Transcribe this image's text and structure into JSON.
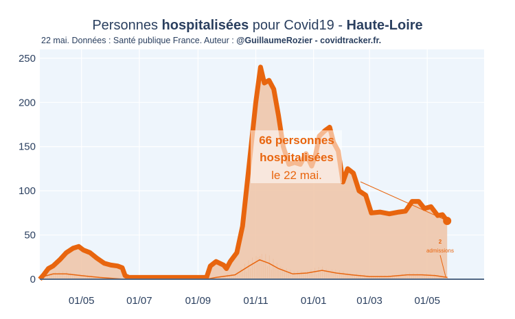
{
  "header": {
    "title_pre": "Personnes ",
    "title_bold": "hospitalisées",
    "title_mid": " pour Covid19 - ",
    "title_region": "Haute-Loire",
    "subtitle_pre": "22 mai. Données : Santé publique France. Auteur : ",
    "subtitle_author": "@GuillaumeRozier - covidtracker.fr."
  },
  "annotations": {
    "main_line1": "66 personnes",
    "main_line2": "hospitalisées",
    "main_line3": "le 22 mai.",
    "admissions_value": "2",
    "admissions_label": "admissions"
  },
  "colors": {
    "plot_bg": "#eef5fc",
    "hosp_line": "#e8650e",
    "hosp_fill": "#efc3a6",
    "admissions": "#e8650e",
    "axis_text": "#2a3f5f"
  },
  "chart_data": {
    "type": "area",
    "title": "Personnes hospitalisées pour Covid19 - Haute-Loire",
    "xlabel": "",
    "ylabel": "",
    "x_tick_labels": [
      "01/05",
      "01/07",
      "01/09",
      "01/11",
      "01/01",
      "01/03",
      "01/05"
    ],
    "y_ticks": [
      0,
      50,
      100,
      150,
      200,
      250
    ],
    "ylim": [
      0,
      260
    ],
    "x_range": [
      "2020-03-18",
      "2021-06-30"
    ],
    "grid": true,
    "series": [
      {
        "name": "hospitalisations",
        "points": [
          [
            "2020-03-18",
            0
          ],
          [
            "2020-03-22",
            5
          ],
          [
            "2020-03-27",
            12
          ],
          [
            "2020-04-01",
            15
          ],
          [
            "2020-04-08",
            22
          ],
          [
            "2020-04-15",
            30
          ],
          [
            "2020-04-22",
            35
          ],
          [
            "2020-04-28",
            37
          ],
          [
            "2020-05-03",
            33
          ],
          [
            "2020-05-10",
            30
          ],
          [
            "2020-05-17",
            24
          ],
          [
            "2020-05-25",
            18
          ],
          [
            "2020-06-01",
            16
          ],
          [
            "2020-06-08",
            15
          ],
          [
            "2020-06-13",
            13
          ],
          [
            "2020-06-16",
            4
          ],
          [
            "2020-06-20",
            2
          ],
          [
            "2020-07-01",
            2
          ],
          [
            "2020-08-01",
            2
          ],
          [
            "2020-09-01",
            2
          ],
          [
            "2020-09-10",
            2
          ],
          [
            "2020-09-14",
            15
          ],
          [
            "2020-09-20",
            20
          ],
          [
            "2020-09-28",
            16
          ],
          [
            "2020-10-01",
            12
          ],
          [
            "2020-10-05",
            20
          ],
          [
            "2020-10-12",
            30
          ],
          [
            "2020-10-18",
            60
          ],
          [
            "2020-10-25",
            130
          ],
          [
            "2020-11-01",
            200
          ],
          [
            "2020-11-06",
            240
          ],
          [
            "2020-11-10",
            222
          ],
          [
            "2020-11-15",
            225
          ],
          [
            "2020-11-20",
            215
          ],
          [
            "2020-11-25",
            185
          ],
          [
            "2020-11-30",
            150
          ],
          [
            "2020-12-06",
            130
          ],
          [
            "2020-12-12",
            132
          ],
          [
            "2020-12-18",
            130
          ],
          [
            "2020-12-24",
            142
          ],
          [
            "2020-12-30",
            128
          ],
          [
            "2021-01-03",
            140
          ],
          [
            "2021-01-07",
            162
          ],
          [
            "2021-01-13",
            168
          ],
          [
            "2021-01-18",
            172
          ],
          [
            "2021-01-22",
            155
          ],
          [
            "2021-01-27",
            145
          ],
          [
            "2021-02-01",
            110
          ],
          [
            "2021-02-06",
            125
          ],
          [
            "2021-02-12",
            120
          ],
          [
            "2021-02-18",
            100
          ],
          [
            "2021-02-25",
            95
          ],
          [
            "2021-03-03",
            75
          ],
          [
            "2021-03-12",
            76
          ],
          [
            "2021-03-22",
            74
          ],
          [
            "2021-04-01",
            76
          ],
          [
            "2021-04-08",
            77
          ],
          [
            "2021-04-15",
            88
          ],
          [
            "2021-04-22",
            88
          ],
          [
            "2021-04-28",
            80
          ],
          [
            "2021-05-05",
            82
          ],
          [
            "2021-05-12",
            72
          ],
          [
            "2021-05-17",
            73
          ],
          [
            "2021-05-22",
            66
          ]
        ]
      },
      {
        "name": "admissions",
        "points": [
          [
            "2020-03-18",
            2
          ],
          [
            "2020-04-01",
            6
          ],
          [
            "2020-04-15",
            6
          ],
          [
            "2020-05-01",
            4
          ],
          [
            "2020-05-20",
            2
          ],
          [
            "2020-06-15",
            0
          ],
          [
            "2020-09-10",
            0
          ],
          [
            "2020-09-20",
            2
          ],
          [
            "2020-10-10",
            5
          ],
          [
            "2020-10-25",
            15
          ],
          [
            "2020-11-05",
            22
          ],
          [
            "2020-11-15",
            18
          ],
          [
            "2020-11-25",
            12
          ],
          [
            "2020-12-10",
            6
          ],
          [
            "2020-12-25",
            7
          ],
          [
            "2021-01-10",
            10
          ],
          [
            "2021-01-25",
            7
          ],
          [
            "2021-02-10",
            5
          ],
          [
            "2021-03-01",
            3
          ],
          [
            "2021-03-20",
            3
          ],
          [
            "2021-04-10",
            5
          ],
          [
            "2021-04-25",
            5
          ],
          [
            "2021-05-10",
            4
          ],
          [
            "2021-05-22",
            2
          ]
        ]
      }
    ]
  }
}
